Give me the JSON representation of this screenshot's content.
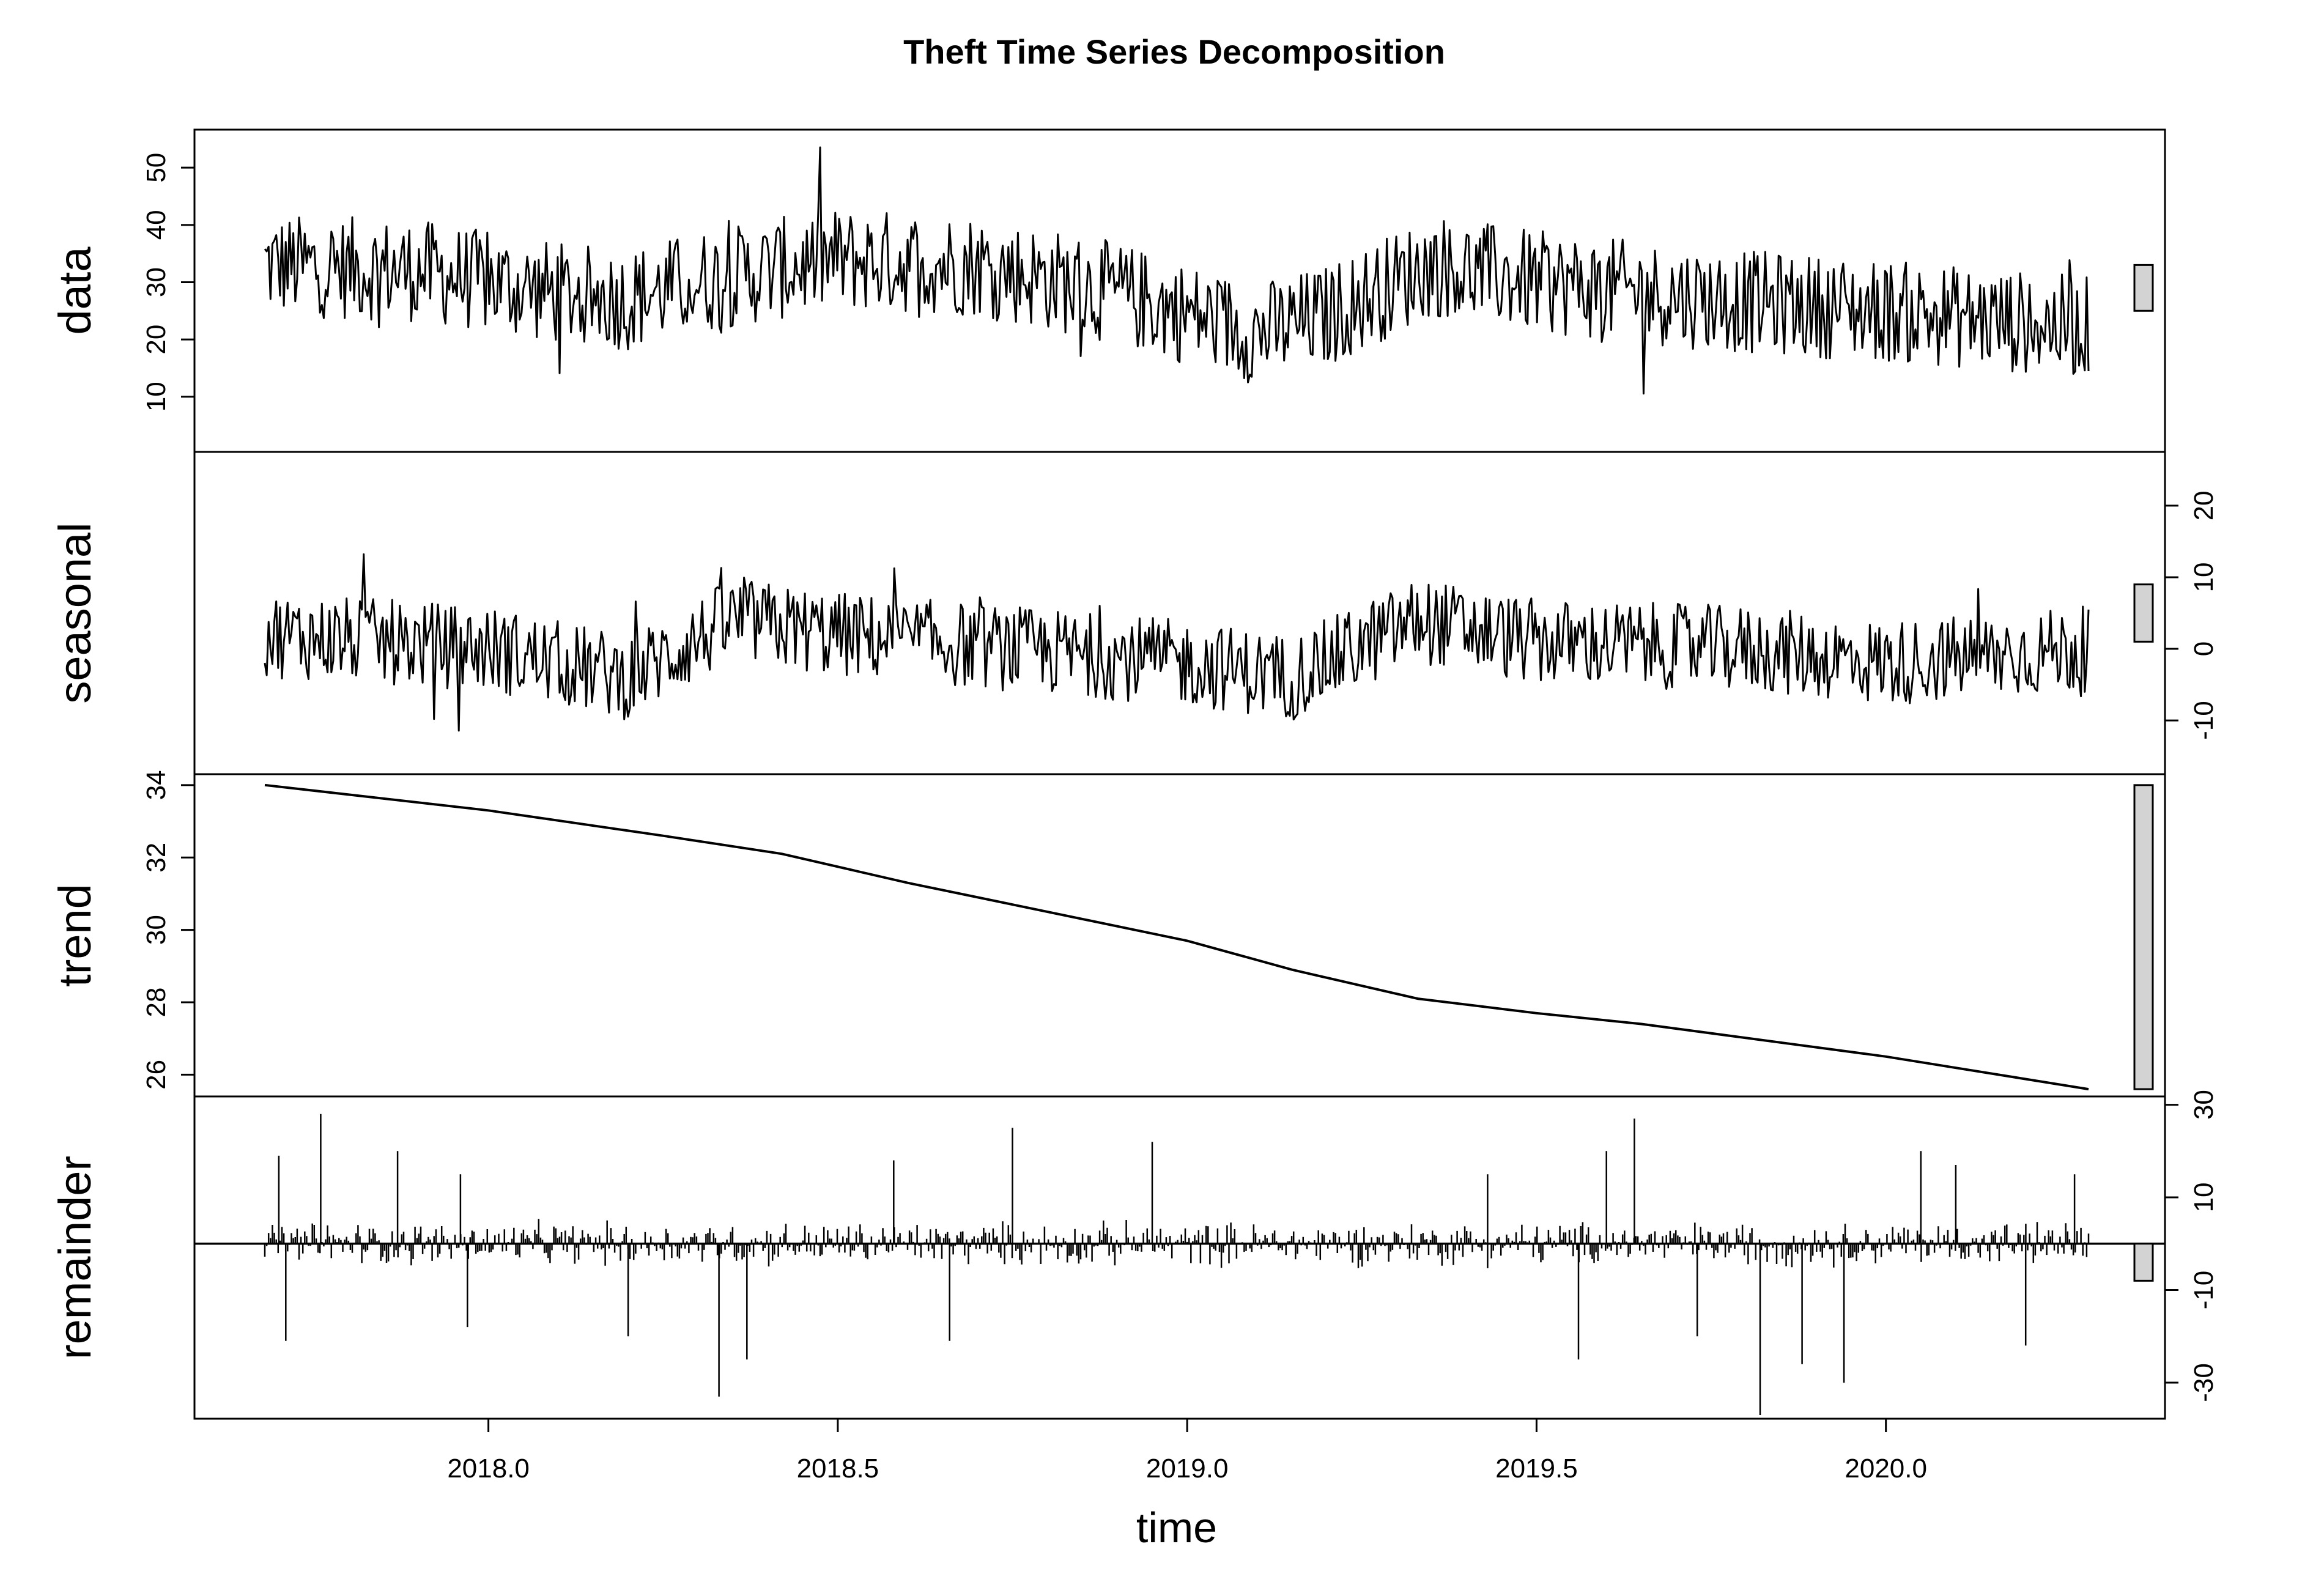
{
  "chart_data": {
    "type": "line",
    "title": "Theft Time Series Decomposition",
    "xlabel": "time",
    "x_ticks": [
      "2018.0",
      "2018.5",
      "2019.0",
      "2019.5",
      "2020.0"
    ],
    "x_range": [
      2017.68,
      2020.29
    ],
    "grid": false,
    "panels": [
      {
        "name": "data",
        "label": "data",
        "tick_side": "left",
        "ylim": [
          1,
          56
        ],
        "ticks": [
          10,
          20,
          30,
          40,
          50
        ],
        "tick_labels": [
          "10",
          "20",
          "30",
          "40",
          "50"
        ],
        "range_bar": [
          25,
          33
        ],
        "series_profile": {
          "mean": [
            [
              2017.68,
              33
            ],
            [
              2017.9,
              32
            ],
            [
              2018.1,
              28
            ],
            [
              2018.2,
              27
            ],
            [
              2018.3,
              30
            ],
            [
              2018.5,
              34
            ],
            [
              2018.7,
              33
            ],
            [
              2018.9,
              28
            ],
            [
              2019.1,
              21
            ],
            [
              2019.2,
              24
            ],
            [
              2019.35,
              33
            ],
            [
              2019.5,
              30
            ],
            [
              2019.75,
              27
            ],
            [
              2020.0,
              25
            ],
            [
              2020.29,
              22
            ]
          ],
          "amplitude": 9
        }
      },
      {
        "name": "seasonal",
        "label": "seasonal",
        "tick_side": "right",
        "ylim": [
          -17,
          27
        ],
        "ticks": [
          -10,
          0,
          10,
          20
        ],
        "tick_labels": [
          "-10",
          "0",
          "10",
          "20"
        ],
        "range_bar": [
          1,
          9
        ],
        "series_profile": {
          "mean": [
            [
              2017.68,
              2
            ],
            [
              2018.0,
              0
            ],
            [
              2018.2,
              -4
            ],
            [
              2018.35,
              4
            ],
            [
              2018.5,
              2
            ],
            [
              2018.75,
              0
            ],
            [
              2019.0,
              -2
            ],
            [
              2019.15,
              -4
            ],
            [
              2019.33,
              4
            ],
            [
              2019.5,
              1
            ],
            [
              2019.8,
              0
            ],
            [
              2020.0,
              -2
            ],
            [
              2020.29,
              0
            ]
          ],
          "amplitude": 6
        }
      },
      {
        "name": "trend",
        "label": "trend",
        "tick_side": "left",
        "ylim": [
          25.5,
          34.2
        ],
        "ticks": [
          26,
          28,
          30,
          32,
          34
        ],
        "tick_labels": [
          "26",
          "28",
          "30",
          "32",
          "34"
        ],
        "range_bar": [
          25.6,
          34.0
        ],
        "line": [
          [
            2017.68,
            34.0
          ],
          [
            2018.0,
            33.3
          ],
          [
            2018.25,
            32.6
          ],
          [
            2018.42,
            32.1
          ],
          [
            2018.6,
            31.3
          ],
          [
            2018.75,
            30.7
          ],
          [
            2019.0,
            29.7
          ],
          [
            2019.15,
            28.9
          ],
          [
            2019.33,
            28.1
          ],
          [
            2019.5,
            27.7
          ],
          [
            2019.65,
            27.4
          ],
          [
            2020.0,
            26.5
          ],
          [
            2020.29,
            25.6
          ]
        ]
      },
      {
        "name": "remainder",
        "label": "remainder",
        "tick_side": "right",
        "ylim": [
          -37,
          31
        ],
        "ticks": [
          -30,
          -10,
          10,
          30
        ],
        "tick_labels": [
          "-30",
          "-10",
          "10",
          "30"
        ],
        "range_bar": [
          -8,
          0
        ],
        "series_profile": {
          "type": "bars",
          "amplitude": 4,
          "spikes": [
            [
              2017.7,
              19
            ],
            [
              2017.71,
              -21
            ],
            [
              2017.76,
              28
            ],
            [
              2017.87,
              20
            ],
            [
              2017.96,
              15
            ],
            [
              2017.97,
              -18
            ],
            [
              2018.2,
              -20
            ],
            [
              2018.33,
              -33
            ],
            [
              2018.37,
              -25
            ],
            [
              2018.58,
              18
            ],
            [
              2018.66,
              -21
            ],
            [
              2018.75,
              25
            ],
            [
              2018.95,
              22
            ],
            [
              2019.43,
              15
            ],
            [
              2019.56,
              -25
            ],
            [
              2019.6,
              20
            ],
            [
              2019.64,
              27
            ],
            [
              2019.73,
              -20
            ],
            [
              2019.82,
              -37
            ],
            [
              2019.88,
              -26
            ],
            [
              2019.94,
              -30
            ],
            [
              2020.05,
              20
            ],
            [
              2020.1,
              17
            ],
            [
              2020.2,
              -22
            ],
            [
              2020.27,
              15
            ]
          ]
        }
      }
    ]
  }
}
